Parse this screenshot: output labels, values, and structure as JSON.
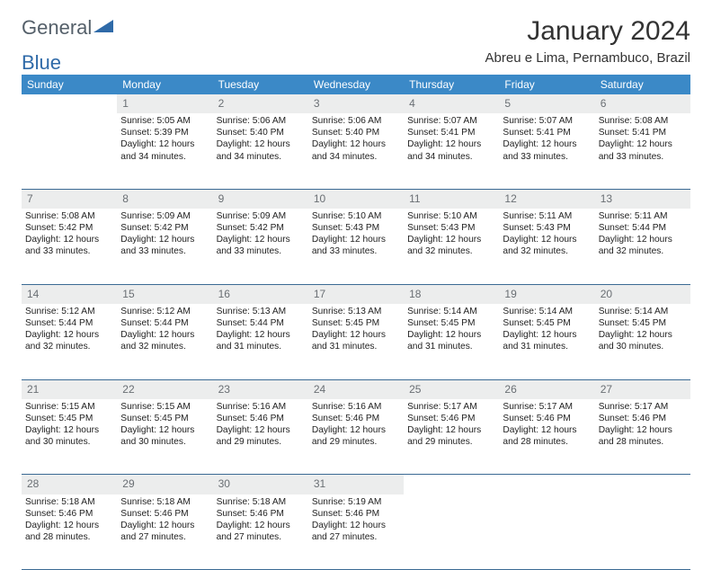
{
  "logo": {
    "text1": "General",
    "text2": "Blue",
    "color1": "#6b7680",
    "color2": "#2f6aa8"
  },
  "title": "January 2024",
  "subtitle": "Abreu e Lima, Pernambuco, Brazil",
  "colors": {
    "header_bg": "#3b89c7",
    "header_text": "#ffffff",
    "daynum_bg": "#eceded",
    "daynum_text": "#6a6f74",
    "cell_border": "#3b6a94",
    "body_text": "#222222"
  },
  "day_headers": [
    "Sunday",
    "Monday",
    "Tuesday",
    "Wednesday",
    "Thursday",
    "Friday",
    "Saturday"
  ],
  "weeks": [
    {
      "nums": [
        "",
        "1",
        "2",
        "3",
        "4",
        "5",
        "6"
      ],
      "cells": [
        "",
        "Sunrise: 5:05 AM\nSunset: 5:39 PM\nDaylight: 12 hours and 34 minutes.",
        "Sunrise: 5:06 AM\nSunset: 5:40 PM\nDaylight: 12 hours and 34 minutes.",
        "Sunrise: 5:06 AM\nSunset: 5:40 PM\nDaylight: 12 hours and 34 minutes.",
        "Sunrise: 5:07 AM\nSunset: 5:41 PM\nDaylight: 12 hours and 34 minutes.",
        "Sunrise: 5:07 AM\nSunset: 5:41 PM\nDaylight: 12 hours and 33 minutes.",
        "Sunrise: 5:08 AM\nSunset: 5:41 PM\nDaylight: 12 hours and 33 minutes."
      ]
    },
    {
      "nums": [
        "7",
        "8",
        "9",
        "10",
        "11",
        "12",
        "13"
      ],
      "cells": [
        "Sunrise: 5:08 AM\nSunset: 5:42 PM\nDaylight: 12 hours and 33 minutes.",
        "Sunrise: 5:09 AM\nSunset: 5:42 PM\nDaylight: 12 hours and 33 minutes.",
        "Sunrise: 5:09 AM\nSunset: 5:42 PM\nDaylight: 12 hours and 33 minutes.",
        "Sunrise: 5:10 AM\nSunset: 5:43 PM\nDaylight: 12 hours and 33 minutes.",
        "Sunrise: 5:10 AM\nSunset: 5:43 PM\nDaylight: 12 hours and 32 minutes.",
        "Sunrise: 5:11 AM\nSunset: 5:43 PM\nDaylight: 12 hours and 32 minutes.",
        "Sunrise: 5:11 AM\nSunset: 5:44 PM\nDaylight: 12 hours and 32 minutes."
      ]
    },
    {
      "nums": [
        "14",
        "15",
        "16",
        "17",
        "18",
        "19",
        "20"
      ],
      "cells": [
        "Sunrise: 5:12 AM\nSunset: 5:44 PM\nDaylight: 12 hours and 32 minutes.",
        "Sunrise: 5:12 AM\nSunset: 5:44 PM\nDaylight: 12 hours and 32 minutes.",
        "Sunrise: 5:13 AM\nSunset: 5:44 PM\nDaylight: 12 hours and 31 minutes.",
        "Sunrise: 5:13 AM\nSunset: 5:45 PM\nDaylight: 12 hours and 31 minutes.",
        "Sunrise: 5:14 AM\nSunset: 5:45 PM\nDaylight: 12 hours and 31 minutes.",
        "Sunrise: 5:14 AM\nSunset: 5:45 PM\nDaylight: 12 hours and 31 minutes.",
        "Sunrise: 5:14 AM\nSunset: 5:45 PM\nDaylight: 12 hours and 30 minutes."
      ]
    },
    {
      "nums": [
        "21",
        "22",
        "23",
        "24",
        "25",
        "26",
        "27"
      ],
      "cells": [
        "Sunrise: 5:15 AM\nSunset: 5:45 PM\nDaylight: 12 hours and 30 minutes.",
        "Sunrise: 5:15 AM\nSunset: 5:45 PM\nDaylight: 12 hours and 30 minutes.",
        "Sunrise: 5:16 AM\nSunset: 5:46 PM\nDaylight: 12 hours and 29 minutes.",
        "Sunrise: 5:16 AM\nSunset: 5:46 PM\nDaylight: 12 hours and 29 minutes.",
        "Sunrise: 5:17 AM\nSunset: 5:46 PM\nDaylight: 12 hours and 29 minutes.",
        "Sunrise: 5:17 AM\nSunset: 5:46 PM\nDaylight: 12 hours and 28 minutes.",
        "Sunrise: 5:17 AM\nSunset: 5:46 PM\nDaylight: 12 hours and 28 minutes."
      ]
    },
    {
      "nums": [
        "28",
        "29",
        "30",
        "31",
        "",
        "",
        ""
      ],
      "cells": [
        "Sunrise: 5:18 AM\nSunset: 5:46 PM\nDaylight: 12 hours and 28 minutes.",
        "Sunrise: 5:18 AM\nSunset: 5:46 PM\nDaylight: 12 hours and 27 minutes.",
        "Sunrise: 5:18 AM\nSunset: 5:46 PM\nDaylight: 12 hours and 27 minutes.",
        "Sunrise: 5:19 AM\nSunset: 5:46 PM\nDaylight: 12 hours and 27 minutes.",
        "",
        "",
        ""
      ]
    }
  ]
}
